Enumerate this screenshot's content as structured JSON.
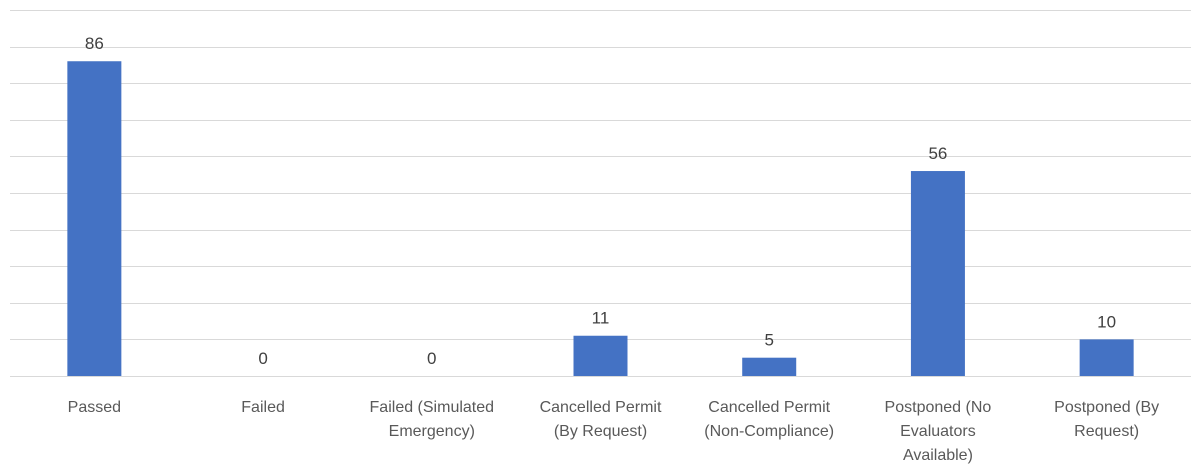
{
  "chart_data": {
    "type": "bar",
    "title": "",
    "xlabel": "",
    "ylabel": "",
    "categories": [
      [
        "Passed"
      ],
      [
        "Failed"
      ],
      [
        "Failed (Simulated",
        "Emergency)"
      ],
      [
        "Cancelled Permit",
        "(By Request)"
      ],
      [
        "Cancelled Permit",
        "(Non-Compliance)"
      ],
      [
        "Postponed (No",
        "Evaluators",
        "Available)"
      ],
      [
        "Postponed (By",
        "Request)"
      ]
    ],
    "values": [
      86,
      0,
      0,
      11,
      5,
      56,
      10
    ],
    "ylim": [
      0,
      100
    ],
    "grid": true,
    "bar_color": "#4472c4",
    "legend": "none"
  }
}
